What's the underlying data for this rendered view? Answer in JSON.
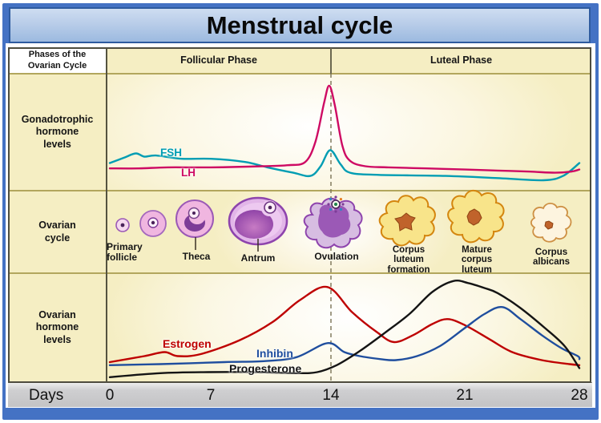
{
  "title": "Menstrual cycle",
  "header": {
    "left": "Phases of the\nOvarian Cycle",
    "follicular": "Follicular Phase",
    "luteal": "Luteal Phase"
  },
  "row_labels": {
    "gonadotrophic": "Gonadotrophic\nhormone\nlevels",
    "ovarian_cycle": "Ovarian\ncycle",
    "ovarian_hormone": "Ovarian\nhormone\nlevels"
  },
  "stages": [
    {
      "label": "Primary\nfollicle"
    },
    {
      "label": "Theca"
    },
    {
      "label": "Antrum"
    },
    {
      "label": "Ovulation"
    },
    {
      "label": "Corpus\nluteum\nformation"
    },
    {
      "label": "Mature\ncorpus\nluteum"
    },
    {
      "label": "Corpus\nalbicans"
    }
  ],
  "axis": {
    "label": "Days",
    "ticks": [
      "0",
      "7",
      "14",
      "21",
      "28"
    ]
  },
  "colors": {
    "frame_blue": "#4472C4",
    "title_border": "#2E5B9F",
    "cell_cream": "#F5EEC3",
    "grid_olive": "#B2A65D",
    "fsh": "#009DB3",
    "lh": "#CE0A63",
    "estrogen": "#BE0000",
    "inhibin": "#1F4E9E",
    "progesterone": "#141414"
  },
  "chart_data": [
    {
      "type": "line",
      "title": "Gonadotrophic hormone levels",
      "xlabel": "Days",
      "xlim": [
        0,
        28
      ],
      "ylim": [
        0,
        100
      ],
      "grid": false,
      "legend_position": "labels on curves",
      "annotations": [
        "dashed vertical line at day 14 (ovulation)",
        "LH surge peaks just before day 14"
      ],
      "x_ticks": [
        0,
        7,
        14,
        21,
        28
      ],
      "series": [
        {
          "name": "FSH",
          "color": "#009DB3",
          "points": [
            [
              0,
              22
            ],
            [
              1,
              27
            ],
            [
              1.8,
              31
            ],
            [
              2.4,
              28
            ],
            [
              3.2,
              29
            ],
            [
              5,
              26
            ],
            [
              7,
              26
            ],
            [
              9,
              23
            ],
            [
              10.3,
              18
            ],
            [
              11.8,
              13
            ],
            [
              12.8,
              10
            ],
            [
              13.4,
              19
            ],
            [
              13.95,
              34
            ],
            [
              14.5,
              21
            ],
            [
              15,
              13
            ],
            [
              16.5,
              11
            ],
            [
              20,
              10
            ],
            [
              23,
              8
            ],
            [
              25.8,
              6
            ],
            [
              27,
              10
            ],
            [
              28,
              22
            ]
          ]
        },
        {
          "name": "LH",
          "color": "#CE0A63",
          "points": [
            [
              0,
              17
            ],
            [
              2,
              17
            ],
            [
              4,
              18
            ],
            [
              7,
              18
            ],
            [
              10,
              19
            ],
            [
              11.5,
              20
            ],
            [
              12.5,
              23
            ],
            [
              13.1,
              42
            ],
            [
              13.6,
              78
            ],
            [
              13.9,
              94
            ],
            [
              14.2,
              76
            ],
            [
              14.6,
              38
            ],
            [
              15,
              24
            ],
            [
              15.8,
              19
            ],
            [
              17,
              18
            ],
            [
              19,
              17
            ],
            [
              21,
              16
            ],
            [
              23,
              15
            ],
            [
              25,
              14
            ],
            [
              26.5,
              13
            ],
            [
              27.5,
              14
            ],
            [
              28,
              16
            ]
          ]
        }
      ]
    },
    {
      "type": "line",
      "title": "Ovarian hormone levels",
      "xlabel": "Days",
      "xlim": [
        0,
        28
      ],
      "ylim": [
        0,
        100
      ],
      "grid": false,
      "legend_position": "labels on curves",
      "annotations": [
        "estrogen peaks just before ovulation (day 14)",
        "progesterone peaks near day 21"
      ],
      "x_ticks": [
        0,
        7,
        14,
        21,
        28
      ],
      "series": [
        {
          "name": "Estrogen",
          "color": "#BE0000",
          "points": [
            [
              0,
              16
            ],
            [
              2.4,
              22
            ],
            [
              3.8,
              26
            ],
            [
              4.7,
              22
            ],
            [
              6.3,
              24
            ],
            [
              8.7,
              38
            ],
            [
              10.6,
              56
            ],
            [
              12.2,
              78
            ],
            [
              13.8,
              91
            ],
            [
              15.1,
              66
            ],
            [
              16.4,
              46
            ],
            [
              17.3,
              36
            ],
            [
              18.3,
              43
            ],
            [
              19.3,
              54
            ],
            [
              20.1,
              59
            ],
            [
              21,
              53
            ],
            [
              22.5,
              39
            ],
            [
              23.9,
              26
            ],
            [
              25.7,
              18
            ],
            [
              27.4,
              14
            ],
            [
              28,
              13
            ]
          ]
        },
        {
          "name": "Inhibin",
          "color": "#1F4E9E",
          "points": [
            [
              0,
              13
            ],
            [
              3.5,
              14
            ],
            [
              7.8,
              16
            ],
            [
              10.1,
              17
            ],
            [
              12,
              21
            ],
            [
              13.8,
              35
            ],
            [
              14.7,
              26
            ],
            [
              15.5,
              22
            ],
            [
              16.6,
              19
            ],
            [
              17.4,
              18
            ],
            [
              18.5,
              22
            ],
            [
              19.7,
              32
            ],
            [
              21,
              50
            ],
            [
              22.2,
              64
            ],
            [
              23.3,
              71
            ],
            [
              24.4,
              59
            ],
            [
              25.7,
              43
            ],
            [
              26.9,
              30
            ],
            [
              27.9,
              22
            ],
            [
              28,
              19
            ]
          ]
        },
        {
          "name": "Progesterone",
          "color": "#141414",
          "points": [
            [
              0,
              1
            ],
            [
              3.5,
              5
            ],
            [
              6.8,
              6
            ],
            [
              9.7,
              6
            ],
            [
              12,
              5
            ],
            [
              13.2,
              6
            ],
            [
              14.3,
              13
            ],
            [
              15.5,
              27
            ],
            [
              16.8,
              45
            ],
            [
              18.1,
              64
            ],
            [
              19.3,
              86
            ],
            [
              20.4,
              97
            ],
            [
              21.2,
              95
            ],
            [
              22.2,
              90
            ],
            [
              23,
              85
            ],
            [
              24.4,
              70
            ],
            [
              25.9,
              50
            ],
            [
              27.1,
              32
            ],
            [
              28,
              10
            ]
          ]
        }
      ]
    }
  ]
}
